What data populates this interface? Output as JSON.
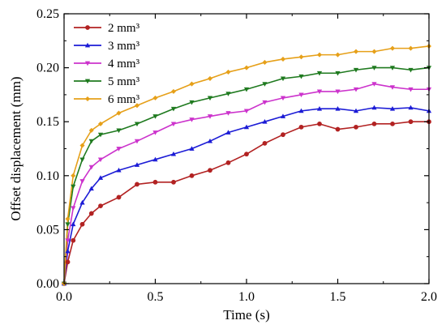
{
  "chart_data": {
    "type": "line",
    "title": "",
    "xlabel": "Time (s)",
    "ylabel": "Offset displacement (mm)",
    "xlim": [
      0.0,
      2.0
    ],
    "ylim": [
      0.0,
      0.25
    ],
    "x_ticks": [
      "0.0",
      "0.5",
      "1.0",
      "1.5",
      "2.0"
    ],
    "y_ticks": [
      "0.00",
      "0.05",
      "0.10",
      "0.15",
      "0.20",
      "0.25"
    ],
    "grid": false,
    "legend_position": "top-left",
    "series": [
      {
        "name": "2 mm³",
        "color": "#b22222",
        "marker": "circle",
        "points": [
          [
            0.0,
            0.0
          ],
          [
            0.02,
            0.02
          ],
          [
            0.05,
            0.04
          ],
          [
            0.1,
            0.055
          ],
          [
            0.15,
            0.065
          ],
          [
            0.2,
            0.072
          ],
          [
            0.3,
            0.08
          ],
          [
            0.4,
            0.092
          ],
          [
            0.5,
            0.094
          ],
          [
            0.6,
            0.094
          ],
          [
            0.7,
            0.1
          ],
          [
            0.8,
            0.105
          ],
          [
            0.9,
            0.112
          ],
          [
            1.0,
            0.12
          ],
          [
            1.1,
            0.13
          ],
          [
            1.2,
            0.138
          ],
          [
            1.3,
            0.145
          ],
          [
            1.4,
            0.148
          ],
          [
            1.5,
            0.143
          ],
          [
            1.6,
            0.145
          ],
          [
            1.7,
            0.148
          ],
          [
            1.8,
            0.148
          ],
          [
            1.9,
            0.15
          ],
          [
            2.0,
            0.15
          ]
        ]
      },
      {
        "name": "3 mm³",
        "color": "#1c1cd6",
        "marker": "triangle",
        "points": [
          [
            0.0,
            0.0
          ],
          [
            0.02,
            0.03
          ],
          [
            0.05,
            0.055
          ],
          [
            0.1,
            0.075
          ],
          [
            0.15,
            0.088
          ],
          [
            0.2,
            0.098
          ],
          [
            0.3,
            0.105
          ],
          [
            0.4,
            0.11
          ],
          [
            0.5,
            0.115
          ],
          [
            0.6,
            0.12
          ],
          [
            0.7,
            0.125
          ],
          [
            0.8,
            0.132
          ],
          [
            0.9,
            0.14
          ],
          [
            1.0,
            0.145
          ],
          [
            1.1,
            0.15
          ],
          [
            1.2,
            0.155
          ],
          [
            1.3,
            0.16
          ],
          [
            1.4,
            0.162
          ],
          [
            1.5,
            0.162
          ],
          [
            1.6,
            0.16
          ],
          [
            1.7,
            0.163
          ],
          [
            1.8,
            0.162
          ],
          [
            1.9,
            0.163
          ],
          [
            2.0,
            0.16
          ]
        ]
      },
      {
        "name": "4 mm³",
        "color": "#cc33cc",
        "marker": "triangle-down",
        "points": [
          [
            0.0,
            0.0
          ],
          [
            0.02,
            0.04
          ],
          [
            0.05,
            0.07
          ],
          [
            0.1,
            0.095
          ],
          [
            0.15,
            0.108
          ],
          [
            0.2,
            0.115
          ],
          [
            0.3,
            0.125
          ],
          [
            0.4,
            0.132
          ],
          [
            0.5,
            0.14
          ],
          [
            0.6,
            0.148
          ],
          [
            0.7,
            0.152
          ],
          [
            0.8,
            0.155
          ],
          [
            0.9,
            0.158
          ],
          [
            1.0,
            0.16
          ],
          [
            1.1,
            0.168
          ],
          [
            1.2,
            0.172
          ],
          [
            1.3,
            0.175
          ],
          [
            1.4,
            0.178
          ],
          [
            1.5,
            0.178
          ],
          [
            1.6,
            0.18
          ],
          [
            1.7,
            0.185
          ],
          [
            1.8,
            0.182
          ],
          [
            1.9,
            0.18
          ],
          [
            2.0,
            0.18
          ]
        ]
      },
      {
        "name": "5 mm³",
        "color": "#1f7a1f",
        "marker": "triangle-down",
        "points": [
          [
            0.0,
            0.0
          ],
          [
            0.02,
            0.055
          ],
          [
            0.05,
            0.09
          ],
          [
            0.1,
            0.115
          ],
          [
            0.15,
            0.132
          ],
          [
            0.2,
            0.138
          ],
          [
            0.3,
            0.142
          ],
          [
            0.4,
            0.148
          ],
          [
            0.5,
            0.155
          ],
          [
            0.6,
            0.162
          ],
          [
            0.7,
            0.168
          ],
          [
            0.8,
            0.172
          ],
          [
            0.9,
            0.176
          ],
          [
            1.0,
            0.18
          ],
          [
            1.1,
            0.185
          ],
          [
            1.2,
            0.19
          ],
          [
            1.3,
            0.192
          ],
          [
            1.4,
            0.195
          ],
          [
            1.5,
            0.195
          ],
          [
            1.6,
            0.198
          ],
          [
            1.7,
            0.2
          ],
          [
            1.8,
            0.2
          ],
          [
            1.9,
            0.198
          ],
          [
            2.0,
            0.2
          ]
        ]
      },
      {
        "name": "6 mm³",
        "color": "#e6a019",
        "marker": "diamond",
        "points": [
          [
            0.0,
            0.0
          ],
          [
            0.02,
            0.06
          ],
          [
            0.05,
            0.1
          ],
          [
            0.1,
            0.128
          ],
          [
            0.15,
            0.142
          ],
          [
            0.2,
            0.148
          ],
          [
            0.3,
            0.158
          ],
          [
            0.4,
            0.165
          ],
          [
            0.5,
            0.172
          ],
          [
            0.6,
            0.178
          ],
          [
            0.7,
            0.185
          ],
          [
            0.8,
            0.19
          ],
          [
            0.9,
            0.196
          ],
          [
            1.0,
            0.2
          ],
          [
            1.1,
            0.205
          ],
          [
            1.2,
            0.208
          ],
          [
            1.3,
            0.21
          ],
          [
            1.4,
            0.212
          ],
          [
            1.5,
            0.212
          ],
          [
            1.6,
            0.215
          ],
          [
            1.7,
            0.215
          ],
          [
            1.8,
            0.218
          ],
          [
            1.9,
            0.218
          ],
          [
            2.0,
            0.22
          ]
        ]
      }
    ]
  }
}
